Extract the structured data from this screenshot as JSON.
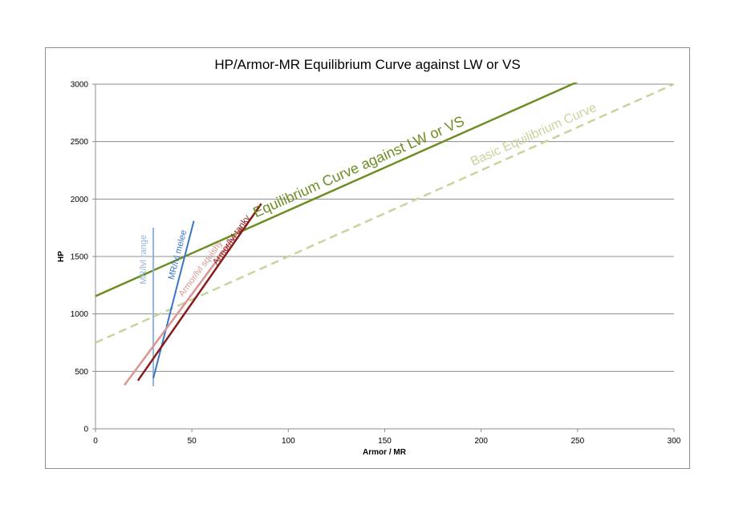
{
  "chart_data": {
    "type": "line",
    "title": "HP/Armor-MR Equilibrium Curve against LW or VS",
    "xlabel": "Armor / MR",
    "ylabel": "HP",
    "xlim": [
      0,
      300
    ],
    "ylim": [
      0,
      3000
    ],
    "xticks": [
      0,
      50,
      100,
      150,
      200,
      250,
      300
    ],
    "yticks": [
      0,
      500,
      1000,
      1500,
      2000,
      2500,
      3000
    ],
    "grid": "horizontal",
    "legend": "none (series labeled inline along lines)",
    "series": [
      {
        "name": "Equilibrium Curve against LW or VS",
        "color": "#6b8e23",
        "dash": "solid",
        "width": 2.5,
        "x": [
          0,
          250
        ],
        "y": [
          1155,
          3020
        ]
      },
      {
        "name": "Basic Equilibrium Curve",
        "color": "#c3d69b",
        "dash": "dashed",
        "width": 2.5,
        "x": [
          0,
          300
        ],
        "y": [
          750,
          3000
        ]
      },
      {
        "name": "MR/lvl range",
        "color": "#95b3d7",
        "dash": "solid",
        "width": 2,
        "x": [
          30,
          30
        ],
        "y": [
          370,
          1750
        ]
      },
      {
        "name": "MR/lvl melee",
        "color": "#3a75c4",
        "dash": "solid",
        "width": 2,
        "x": [
          30,
          51
        ],
        "y": [
          440,
          1810
        ]
      },
      {
        "name": "Armor/lvl squishy",
        "color": "#d99594",
        "dash": "solid",
        "width": 2.5,
        "x": [
          15,
          76
        ],
        "y": [
          380,
          1760
        ]
      },
      {
        "name": "Armor/lvl tanky",
        "color": "#8b1a1a",
        "dash": "solid",
        "width": 2.5,
        "x": [
          22,
          86
        ],
        "y": [
          420,
          1960
        ]
      }
    ],
    "annotations": [
      {
        "text": "Equilibrium Curve against LW or VS",
        "series": 0,
        "color": "#6b8e23"
      },
      {
        "text": "Basic Equilibrium Curve",
        "series": 1,
        "color": "#c3d69b"
      },
      {
        "text": "MR/lvl range",
        "series": 2,
        "color": "#95b3d7"
      },
      {
        "text": "MR/lvl melee",
        "series": 3,
        "color": "#3a75c4"
      },
      {
        "text": "Armor/lvl squishy",
        "series": 4,
        "color": "#d99594"
      },
      {
        "text": "Armor/lvl tanky",
        "series": 5,
        "color": "#8b1a1a"
      }
    ]
  }
}
